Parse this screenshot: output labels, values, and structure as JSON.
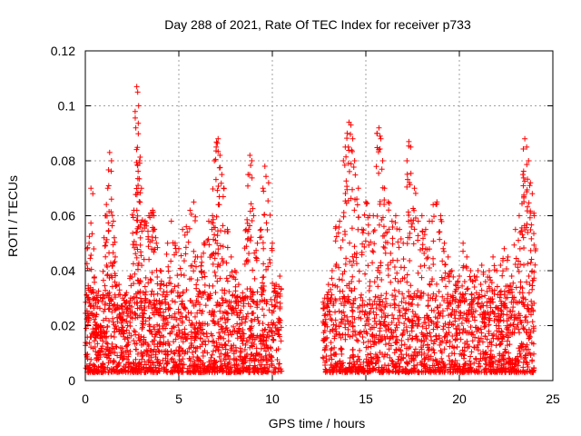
{
  "chart_data": {
    "type": "scatter",
    "title": "Day 288 of 2021, Rate Of TEC Index for receiver p733",
    "xlabel": "GPS time / hours",
    "ylabel": "ROTI / TECUs",
    "xlim": [
      0,
      25
    ],
    "ylim": [
      0,
      0.12
    ],
    "xticks": [
      0,
      5,
      10,
      15,
      20,
      25
    ],
    "yticks": [
      0,
      0.02,
      0.04,
      0.06,
      0.08,
      0.1,
      0.12
    ],
    "xtick_labels": [
      "0",
      "5",
      "10",
      "15",
      "20",
      "25"
    ],
    "ytick_labels": [
      "0",
      "0.02",
      "0.04",
      "0.06",
      "0.08",
      "0.1",
      "0.12"
    ],
    "grid": true,
    "legend": "none",
    "marker": "+",
    "color": "#ff0000",
    "data_gap_hours": [
      10.5,
      12.7
    ],
    "series": [
      {
        "x": [
          0.1,
          0.2,
          0.3,
          0.4,
          0.5,
          0.6,
          0.8,
          1.0,
          1.1,
          1.2,
          1.3,
          1.4,
          1.5,
          1.6,
          1.8,
          2.0,
          2.2,
          2.4,
          2.6,
          2.7,
          2.75,
          2.8,
          2.85,
          2.9,
          3.0,
          3.2,
          3.4,
          3.5,
          3.6,
          3.7,
          3.8,
          4.0,
          4.2,
          4.4,
          4.6,
          4.8,
          5.0,
          5.2,
          5.4,
          5.6,
          5.8,
          6.0,
          6.2,
          6.4,
          6.6,
          6.8,
          6.9,
          7.0,
          7.1,
          7.2,
          7.3,
          7.4,
          7.6,
          7.8,
          8.0,
          8.2,
          8.4,
          8.6,
          8.7,
          8.8,
          8.9,
          9.0,
          9.2,
          9.4,
          9.5,
          9.6,
          9.8,
          10.0,
          10.2,
          10.4,
          12.8,
          13.0,
          13.2,
          13.4,
          13.6,
          13.8,
          13.9,
          14.0,
          14.1,
          14.2,
          14.3,
          14.4,
          14.6,
          14.8,
          15.0,
          15.2,
          15.4,
          15.6,
          15.7,
          15.8,
          15.9,
          16.0,
          16.2,
          16.4,
          16.6,
          16.8,
          17.0,
          17.2,
          17.3,
          17.4,
          17.6,
          17.8,
          18.0,
          18.2,
          18.4,
          18.6,
          18.8,
          19.0,
          19.2,
          19.4,
          19.6,
          19.8,
          20.0,
          20.2,
          20.4,
          20.6,
          20.8,
          21.0,
          21.2,
          21.4,
          21.6,
          21.8,
          22.0,
          22.2,
          22.4,
          22.6,
          22.8,
          23.0,
          23.2,
          23.4,
          23.5,
          23.6,
          23.7,
          23.8,
          23.9,
          24.0
        ],
        "y": [
          0.048,
          0.05,
          0.07,
          0.068,
          0.03,
          0.024,
          0.02,
          0.052,
          0.06,
          0.07,
          0.083,
          0.08,
          0.058,
          0.045,
          0.035,
          0.03,
          0.032,
          0.038,
          0.062,
          0.092,
          0.107,
          0.105,
          0.1,
          0.08,
          0.07,
          0.058,
          0.06,
          0.061,
          0.062,
          0.055,
          0.05,
          0.04,
          0.035,
          0.05,
          0.058,
          0.05,
          0.048,
          0.055,
          0.056,
          0.062,
          0.065,
          0.045,
          0.045,
          0.05,
          0.058,
          0.06,
          0.08,
          0.085,
          0.088,
          0.082,
          0.075,
          0.07,
          0.055,
          0.045,
          0.04,
          0.035,
          0.03,
          0.055,
          0.075,
          0.082,
          0.08,
          0.06,
          0.05,
          0.055,
          0.07,
          0.078,
          0.072,
          0.05,
          0.035,
          0.038,
          0.03,
          0.035,
          0.04,
          0.056,
          0.058,
          0.08,
          0.085,
          0.09,
          0.094,
          0.093,
          0.088,
          0.08,
          0.07,
          0.055,
          0.065,
          0.06,
          0.06,
          0.09,
          0.092,
          0.088,
          0.08,
          0.07,
          0.065,
          0.058,
          0.06,
          0.055,
          0.05,
          0.08,
          0.087,
          0.085,
          0.07,
          0.058,
          0.06,
          0.055,
          0.058,
          0.064,
          0.065,
          0.06,
          0.05,
          0.045,
          0.04,
          0.035,
          0.038,
          0.05,
          0.045,
          0.04,
          0.038,
          0.04,
          0.042,
          0.036,
          0.04,
          0.045,
          0.04,
          0.042,
          0.048,
          0.045,
          0.038,
          0.055,
          0.06,
          0.075,
          0.088,
          0.085,
          0.08,
          0.072,
          0.068,
          0.06
        ]
      }
    ]
  }
}
